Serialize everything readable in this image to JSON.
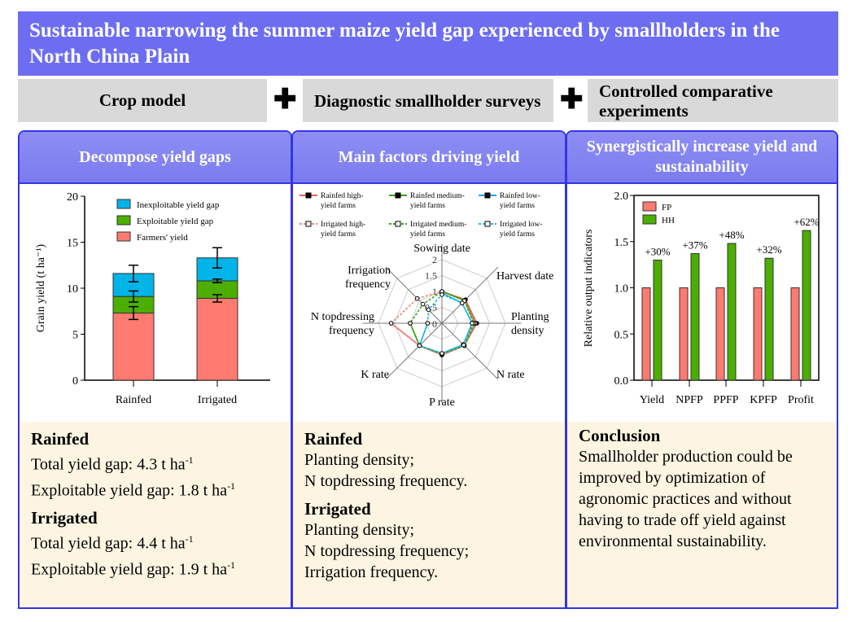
{
  "title": "Sustainable narrowing the summer maize yield gap experienced by smallholders in the North China Plain",
  "methods": [
    "Crop model",
    "Diagnostic smallholder surveys",
    "Controlled comparative experiments"
  ],
  "plus": "✚",
  "panels": [
    {
      "header": "Decompose yield gaps",
      "text": [
        {
          "h": "Rainfed",
          "lines": [
            "Total yield gap: 4.3 t ha",
            "Exploitable yield gap: 1.8 t ha"
          ]
        },
        {
          "h": "Irrigated",
          "lines": [
            "Total yield gap: 4.4 t ha",
            "Exploitable yield gap: 1.9 t ha"
          ]
        }
      ],
      "sup": "-1"
    },
    {
      "header": "Main factors driving yield",
      "text": [
        {
          "h": "Rainfed",
          "lines": [
            "Planting density;",
            "N topdressing frequency."
          ]
        },
        {
          "h": "Irrigated",
          "lines": [
            "Planting density;",
            "N topdressing frequency;",
            "Irrigation frequency."
          ]
        }
      ]
    },
    {
      "header": "Synergistically increase yield and sustainability",
      "text": [
        {
          "h": "Conclusion",
          "lines": [
            "Smallholder production could be improved by optimization of agronomic practices and without having to trade off yield against environmental sustainability."
          ]
        }
      ]
    }
  ],
  "chart_data": [
    {
      "type": "bar",
      "stacked": true,
      "categories": [
        "Rainfed",
        "Irrigated"
      ],
      "ylabel": "Grain yield (t ha⁻¹)",
      "ylim": [
        0,
        20
      ],
      "yticks": [
        0,
        5,
        10,
        15,
        20
      ],
      "legend": "top",
      "series": [
        {
          "name": "Farmers' yield",
          "values": [
            7.3,
            8.9
          ],
          "err": [
            0.7,
            0.4
          ],
          "color": "#ff7a70"
        },
        {
          "name": "Exploitable yield gap",
          "values": [
            1.8,
            1.9
          ],
          "err": [
            0.6,
            0.2
          ],
          "color": "#4cae00"
        },
        {
          "name": "Inexploitable yield gap",
          "values": [
            2.5,
            2.5
          ],
          "err": [
            0.9,
            1.1
          ],
          "color": "#00b4e8"
        }
      ]
    },
    {
      "type": "radar",
      "axes": [
        "Sowing date",
        "Harvest date",
        "Planting density",
        "N rate",
        "P rate",
        "K rate",
        "N topdressing frequency",
        "Irrigation frequency"
      ],
      "rlim": [
        0,
        2
      ],
      "rticks": [
        "0",
        "0.5",
        "1",
        "1.5",
        "2"
      ],
      "series": [
        {
          "name": "Rainfed high-yield farms",
          "values": [
            1,
            1.05,
            1.1,
            1.0,
            1.0,
            1.0,
            1.6,
            null
          ],
          "color": "#f0605a",
          "dash": false,
          "marker": "square"
        },
        {
          "name": "Rainfed medium-yield farms",
          "values": [
            1,
            1.02,
            1.05,
            1.0,
            0.97,
            1.0,
            1.0,
            null
          ],
          "color": "#3aa010",
          "dash": false,
          "marker": "triangle"
        },
        {
          "name": "Rainfed low-yield farms",
          "values": [
            0.95,
            0.9,
            0.95,
            0.95,
            0.95,
            1.0,
            0.45,
            null
          ],
          "color": "#10a8e8",
          "dash": false,
          "marker": "circle"
        },
        {
          "name": "Irrigated high-yield farms",
          "values": [
            1,
            1.0,
            1.05,
            1.0,
            1.0,
            1.0,
            1.6,
            1.1
          ],
          "color": "#f88080",
          "dash": true,
          "marker": "square-open"
        },
        {
          "name": "Irrigated medium-yield farms",
          "values": [
            1,
            1.0,
            1.0,
            1.0,
            0.97,
            1.0,
            1.0,
            0.85
          ],
          "color": "#3aa010",
          "dash": true,
          "marker": "triangle-open"
        },
        {
          "name": "Irrigated low-yield farms",
          "values": [
            0.9,
            0.9,
            0.95,
            0.97,
            0.95,
            1.0,
            0.45,
            0.6
          ],
          "color": "#20b8e8",
          "dash": true,
          "marker": "circle-open"
        }
      ]
    },
    {
      "type": "bar",
      "categories": [
        "Yield",
        "NPFP",
        "PPFP",
        "KPFP",
        "Profit"
      ],
      "ylabel": "Relative output indicators",
      "ylim": [
        0,
        2
      ],
      "yticks": [
        "0.0",
        "0.5",
        "1.0",
        "1.5",
        "2.0"
      ],
      "legend": "top-left",
      "series": [
        {
          "name": "FP",
          "values": [
            1,
            1,
            1,
            1,
            1
          ],
          "color": "#ff7a70"
        },
        {
          "name": "HH",
          "values": [
            1.3,
            1.37,
            1.48,
            1.32,
            1.62
          ],
          "color": "#4cae00"
        }
      ],
      "annotations": [
        "+30%",
        "+37%",
        "+48%",
        "+32%",
        "+62%"
      ]
    }
  ]
}
